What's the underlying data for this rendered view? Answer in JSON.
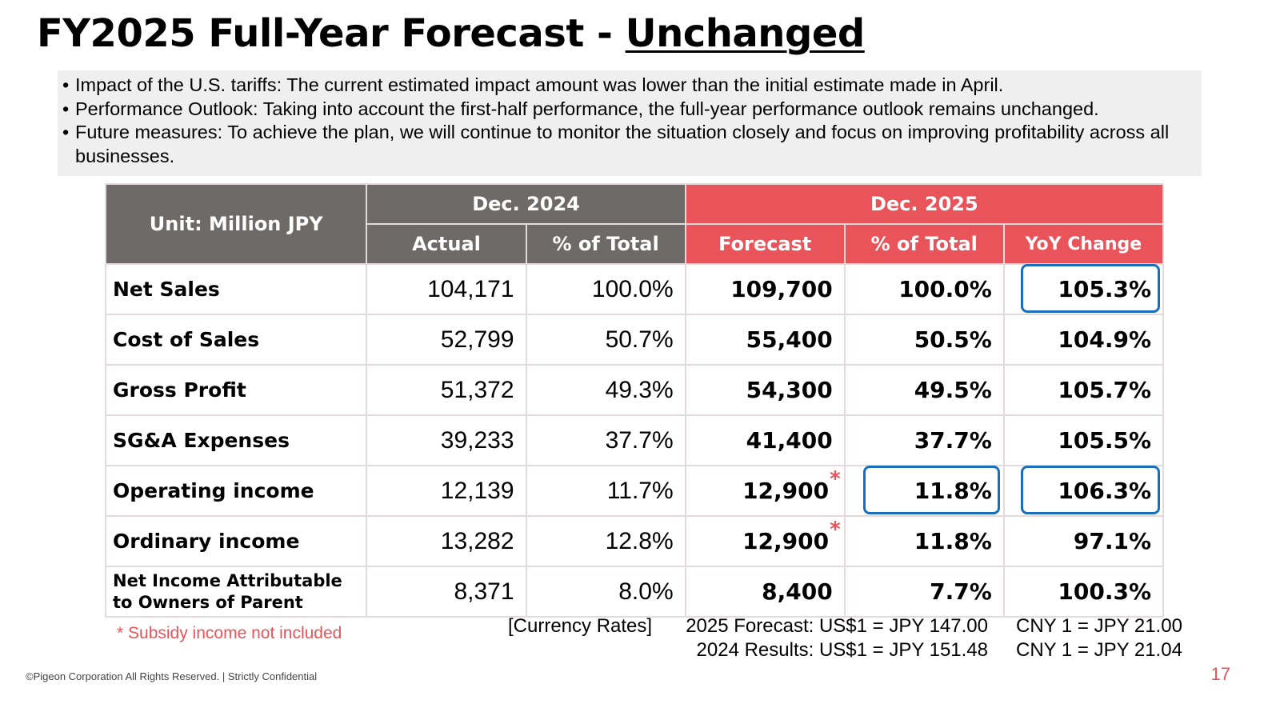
{
  "title": {
    "prefix": "FY2025 Full-Year Forecast - ",
    "emphasis": "Unchanged"
  },
  "bullets": [
    "Impact of the U.S. tariffs: The current estimated impact amount was lower than the initial estimate made in April.",
    "Performance Outlook: Taking into account the first-half performance, the full-year performance outlook remains unchanged.",
    "Future measures: To achieve the plan, we will continue to monitor the situation closely and focus on improving profitability across all businesses."
  ],
  "table": {
    "unit": "Unit: Million JPY",
    "group_2024": "Dec. 2024",
    "group_2025": "Dec. 2025",
    "col_actual": "Actual",
    "col_pct_2024": "% of Total",
    "col_forecast": "Forecast",
    "col_pct_2025": "% of Total",
    "col_yoy": "YoY Change",
    "rows": [
      {
        "label": "Net Sales",
        "actual": "104,171",
        "pct24": "100.0%",
        "forecast": "109,700",
        "pct25": "100.0%",
        "yoy": "105.3%"
      },
      {
        "label": "Cost of Sales",
        "actual": "52,799",
        "pct24": "50.7%",
        "forecast": "55,400",
        "pct25": "50.5%",
        "yoy": "104.9%"
      },
      {
        "label": "Gross Profit",
        "actual": "51,372",
        "pct24": "49.3%",
        "forecast": "54,300",
        "pct25": "49.5%",
        "yoy": "105.7%"
      },
      {
        "label": "SG&A Expenses",
        "actual": "39,233",
        "pct24": "37.7%",
        "forecast": "41,400",
        "pct25": "37.7%",
        "yoy": "105.5%"
      },
      {
        "label": "Operating income",
        "actual": "12,139",
        "pct24": "11.7%",
        "forecast": "12,900",
        "pct25": "11.8%",
        "yoy": "106.3%"
      },
      {
        "label": "Ordinary income",
        "actual": "13,282",
        "pct24": "12.8%",
        "forecast": "12,900",
        "pct25": "11.8%",
        "yoy": "97.1%"
      },
      {
        "label": "Net Income Attributable to Owners of Parent",
        "actual": "8,371",
        "pct24": "8.0%",
        "forecast": "8,400",
        "pct25": "7.7%",
        "yoy": "100.3%"
      }
    ]
  },
  "asterisk": "*",
  "note": "* Subsidy income not included",
  "rates": {
    "label": "[Currency Rates]",
    "forecast_usd": "2025 Forecast: US$1 = JPY 147.00",
    "results_usd": "2024 Results: US$1 = JPY 151.48",
    "forecast_cny": "CNY 1 = JPY 21.00",
    "results_cny": "CNY 1 = JPY 21.04"
  },
  "footer": "©Pigeon Corporation All Rights Reserved.  |  Strictly Confidential",
  "page_number": "17",
  "colors": {
    "header_gray": "#6e6a68",
    "header_red": "#e8545a",
    "highlight_blue": "#1a6fbb",
    "note_red": "#e8545a"
  }
}
